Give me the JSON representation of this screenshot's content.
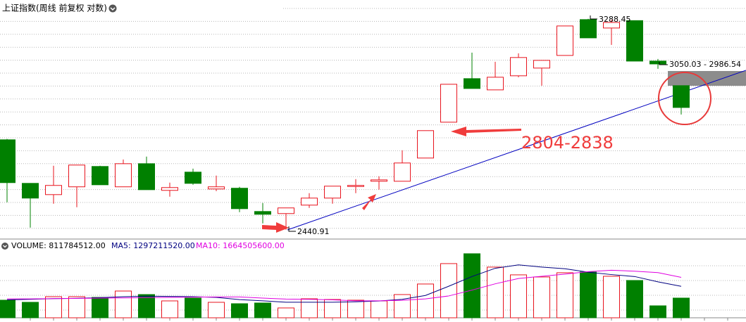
{
  "chart_data": [
    {
      "type": "candlestick",
      "title": "上证指数(周线 前复权 对数)",
      "log_scale": true,
      "ylim": [
        2409,
        3377
      ],
      "up_color": "#e8141e",
      "down_color": "#008000",
      "open": [
        2771.7,
        2606.2,
        2565.1,
        2593.5,
        2669.1,
        2593.5,
        2679.6,
        2580.5,
        2647.9,
        2585.6,
        2588.3,
        2504.6,
        2497.3,
        2527.3,
        2552.5,
        2596.0,
        2614.0,
        2614.0,
        2701.1,
        2841.5,
        3021.8,
        2974.2,
        3034.0,
        3067.3,
        3122.6,
        3284.7,
        3245.9,
        3280.0,
        3097.7,
        2992.0
      ],
      "high": [
        2775.0,
        2606.2,
        2671.8,
        2674.5,
        2671.8,
        2695.7,
        2706.5,
        2608.9,
        2661.1,
        2634.9,
        2593.5,
        2534.9,
        2517.3,
        2570.3,
        2595.9,
        2621.8,
        2632.3,
        2730.9,
        2807.8,
        2997.9,
        3134.9,
        3094.6,
        3131.7,
        3100.9,
        3255.4,
        3288.45,
        3284.0,
        3280.0,
        3107.0,
        2992.0
      ],
      "low": [
        2537.4,
        2448.2,
        2532.2,
        2519.8,
        2601.0,
        2593.5,
        2583.0,
        2557.6,
        2601.0,
        2577.8,
        2502.2,
        2462.8,
        2440.91,
        2517.3,
        2532.2,
        2570.3,
        2583.0,
        2614.0,
        2701.1,
        2841.5,
        2980.1,
        2974.2,
        3027.9,
        2992.0,
        3122.6,
        3201.0,
        3169.5,
        3097.7,
        3064.1,
        2872.6
      ],
      "close": [
        2608.9,
        2552.5,
        2598.6,
        2674.5,
        2601.0,
        2679.6,
        2583.0,
        2590.8,
        2606.2,
        2593.5,
        2514.6,
        2494.8,
        2517.3,
        2552.5,
        2595.9,
        2598.6,
        2619.1,
        2682.3,
        2807.8,
        2997.9,
        2980.1,
        3027.9,
        3113.4,
        3100.9,
        3255.4,
        3201.0,
        3271.6,
        3097.7,
        3085.3,
        2901.2
      ],
      "annotations": [
        "3288.45",
        "2440.91",
        "3050.03 - 2986.54",
        "2804-2838"
      ]
    },
    {
      "type": "bar",
      "ylim": [
        0,
        3100000000
      ],
      "series": [
        {
          "name": "VOLUME: 811784512.00",
          "color": "#000000",
          "values": [
            725000000,
            638000000,
            870000000,
            870000000,
            841000000,
            1102000000,
            957000000,
            696000000,
            812000000,
            638000000,
            580000000,
            609000000,
            406000000,
            783000000,
            754000000,
            725000000,
            696000000,
            957000000,
            1392000000,
            2233000000,
            2639000000,
            2088000000,
            1769000000,
            1682000000,
            1856000000,
            1885000000,
            1711000000,
            1537000000,
            493000000,
            811784512
          ]
        },
        {
          "name": "MA5: 1297211520.00",
          "color": "#000080",
          "values": [
            740000000,
            760000000,
            790000000,
            800000000,
            830000000,
            870000000,
            890000000,
            880000000,
            870000000,
            840000000,
            750000000,
            700000000,
            640000000,
            640000000,
            640000000,
            660000000,
            690000000,
            760000000,
            920000000,
            1300000000,
            1700000000,
            2040000000,
            2180000000,
            2090000000,
            2020000000,
            1880000000,
            1780000000,
            1700000000,
            1480000000,
            1297211520
          ]
        },
        {
          "name": "MA10: 1664505600.00",
          "color": "#e000e0",
          "values": [
            780000000,
            780000000,
            790000000,
            800000000,
            810000000,
            820000000,
            830000000,
            840000000,
            850000000,
            860000000,
            860000000,
            810000000,
            770000000,
            760000000,
            740000000,
            700000000,
            700000000,
            720000000,
            780000000,
            900000000,
            1140000000,
            1400000000,
            1620000000,
            1710000000,
            1800000000,
            1900000000,
            1960000000,
            1920000000,
            1860000000,
            1664505600
          ]
        }
      ]
    }
  ]
}
